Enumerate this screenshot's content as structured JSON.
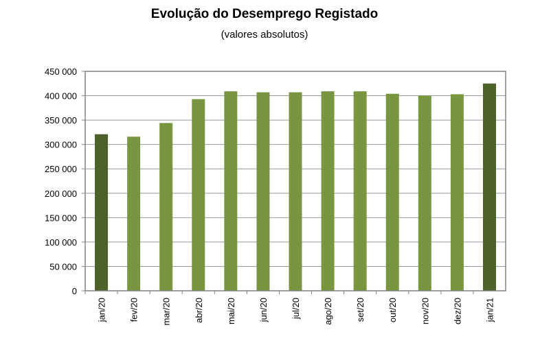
{
  "chart_data": {
    "type": "bar",
    "title": "Evolução do Desemprego Registado",
    "subtitle": "(valores absolutos)",
    "xlabel": "",
    "ylabel": "",
    "categories": [
      "jan/20",
      "fev/20",
      "mar/20",
      "abr/20",
      "mai/20",
      "jun/20",
      "jul/20",
      "ago/20",
      "set/20",
      "out/20",
      "nov/20",
      "dez/20",
      "jan/21"
    ],
    "values": [
      321000,
      316000,
      344000,
      393000,
      409000,
      407000,
      407000,
      409000,
      409000,
      404000,
      400000,
      403000,
      425000
    ],
    "highlight": [
      0,
      12
    ],
    "ylim": [
      0,
      450000
    ],
    "yticks": [
      0,
      50000,
      100000,
      150000,
      200000,
      250000,
      300000,
      350000,
      400000,
      450000
    ],
    "ytick_labels": [
      "0",
      "50 000",
      "100 000",
      "150 000",
      "200 000",
      "250 000",
      "300 000",
      "350 000",
      "400 000",
      "450 000"
    ],
    "grid": true,
    "legend": "none",
    "colors": {
      "bar": "#77963f",
      "highlight": "#4d6129",
      "grid": "#999999",
      "plot_border": "#808080"
    }
  }
}
